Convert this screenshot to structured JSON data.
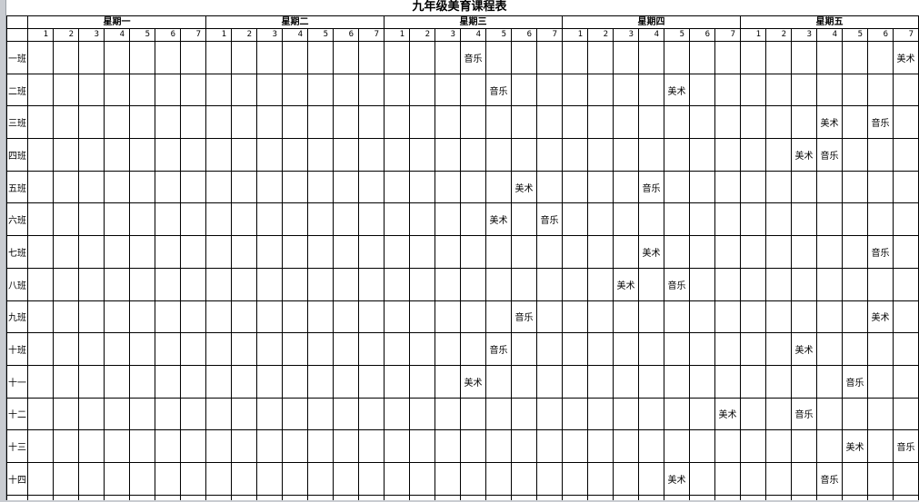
{
  "title": "九年级美育课程表",
  "days": [
    "星期一",
    "星期二",
    "星期三",
    "星期四",
    "星期五"
  ],
  "periods": [
    "1",
    "2",
    "3",
    "4",
    "5",
    "6",
    "7"
  ],
  "subjects": {
    "music": "音乐",
    "art": "美术"
  },
  "schedule": [
    {
      "class_label": "一班",
      "entries": [
        {
          "day_index": 2,
          "period": 4,
          "subject": "音乐"
        },
        {
          "day_index": 4,
          "period": 7,
          "subject": "美术"
        }
      ]
    },
    {
      "class_label": "二班",
      "entries": [
        {
          "day_index": 2,
          "period": 5,
          "subject": "音乐"
        },
        {
          "day_index": 3,
          "period": 5,
          "subject": "美术"
        }
      ]
    },
    {
      "class_label": "三班",
      "entries": [
        {
          "day_index": 4,
          "period": 4,
          "subject": "美术"
        },
        {
          "day_index": 4,
          "period": 6,
          "subject": "音乐"
        }
      ]
    },
    {
      "class_label": "四班",
      "entries": [
        {
          "day_index": 4,
          "period": 3,
          "subject": "美术"
        },
        {
          "day_index": 4,
          "period": 4,
          "subject": "音乐"
        }
      ]
    },
    {
      "class_label": "五班",
      "entries": [
        {
          "day_index": 2,
          "period": 6,
          "subject": "美术"
        },
        {
          "day_index": 3,
          "period": 4,
          "subject": "音乐"
        }
      ]
    },
    {
      "class_label": "六班",
      "entries": [
        {
          "day_index": 2,
          "period": 5,
          "subject": "美术"
        },
        {
          "day_index": 2,
          "period": 7,
          "subject": "音乐"
        }
      ]
    },
    {
      "class_label": "七班",
      "entries": [
        {
          "day_index": 3,
          "period": 4,
          "subject": "美术"
        },
        {
          "day_index": 4,
          "period": 6,
          "subject": "音乐"
        }
      ]
    },
    {
      "class_label": "八班",
      "entries": [
        {
          "day_index": 3,
          "period": 3,
          "subject": "美术"
        },
        {
          "day_index": 3,
          "period": 5,
          "subject": "音乐"
        }
      ]
    },
    {
      "class_label": "九班",
      "entries": [
        {
          "day_index": 2,
          "period": 6,
          "subject": "音乐"
        },
        {
          "day_index": 4,
          "period": 6,
          "subject": "美术"
        }
      ]
    },
    {
      "class_label": "十班",
      "entries": [
        {
          "day_index": 2,
          "period": 5,
          "subject": "音乐"
        },
        {
          "day_index": 4,
          "period": 3,
          "subject": "美术"
        }
      ]
    },
    {
      "class_label": "十一",
      "entries": [
        {
          "day_index": 2,
          "period": 4,
          "subject": "美术"
        },
        {
          "day_index": 4,
          "period": 5,
          "subject": "音乐"
        }
      ]
    },
    {
      "class_label": "十二",
      "entries": [
        {
          "day_index": 3,
          "period": 7,
          "subject": "美术"
        },
        {
          "day_index": 4,
          "period": 3,
          "subject": "音乐"
        }
      ]
    },
    {
      "class_label": "十三",
      "entries": [
        {
          "day_index": 4,
          "period": 5,
          "subject": "美术"
        },
        {
          "day_index": 4,
          "period": 7,
          "subject": "音乐"
        }
      ]
    },
    {
      "class_label": "十四",
      "entries": [
        {
          "day_index": 3,
          "period": 5,
          "subject": "美术"
        },
        {
          "day_index": 4,
          "period": 4,
          "subject": "音乐"
        }
      ]
    }
  ],
  "colors": {
    "grid_line": "#000000",
    "background": "#ffffff",
    "window_edge": "#c9ccd1",
    "text": "#000000"
  }
}
